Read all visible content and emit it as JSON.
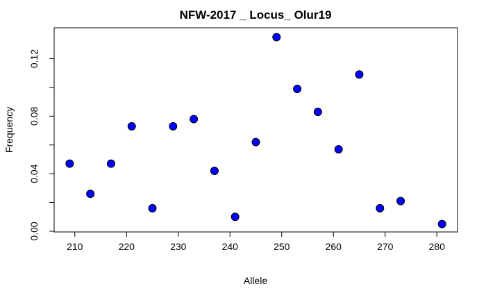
{
  "chart_data": {
    "type": "scatter",
    "title": "NFW-2017 _ Locus_ Olur19",
    "xlabel": "Allele",
    "ylabel": "Frequency",
    "xlim": [
      206,
      284
    ],
    "ylim": [
      -0.0005,
      0.1415
    ],
    "xticks": [
      210,
      220,
      230,
      240,
      250,
      260,
      270,
      280
    ],
    "xtick_labels": [
      "210",
      "220",
      "230",
      "240",
      "250",
      "260",
      "270",
      "280"
    ],
    "yticks": [
      0.0,
      0.02,
      0.04,
      0.06,
      0.08,
      0.1,
      0.12
    ],
    "ytick_labels": [
      "0.00",
      "",
      "0.04",
      "",
      "0.08",
      "",
      "0.12"
    ],
    "marker_fill": "#0000ff",
    "marker_edge": "#000000",
    "grid": false,
    "x": [
      209,
      213,
      217,
      221,
      225,
      229,
      233,
      237,
      241,
      245,
      249,
      253,
      257,
      261,
      265,
      269,
      273,
      281
    ],
    "y": [
      0.047,
      0.026,
      0.047,
      0.073,
      0.016,
      0.073,
      0.078,
      0.042,
      0.01,
      0.062,
      0.135,
      0.099,
      0.083,
      0.057,
      0.109,
      0.016,
      0.021,
      0.005
    ]
  }
}
